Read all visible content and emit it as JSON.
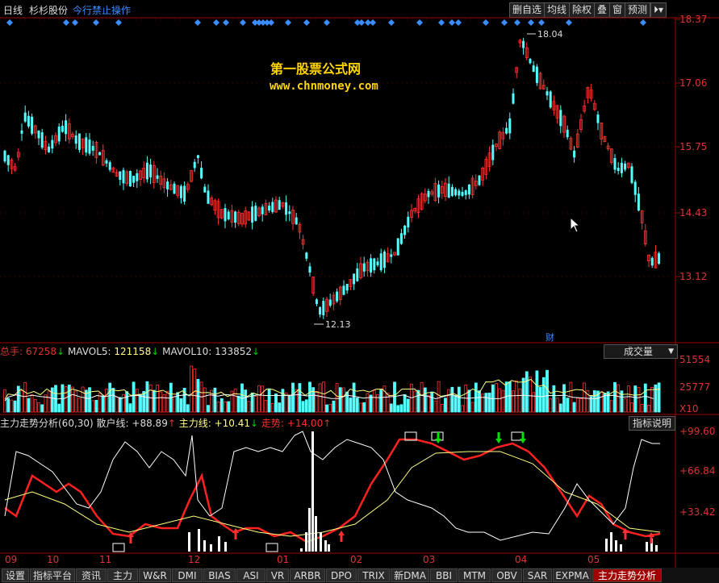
{
  "topbar": {
    "period": "日线",
    "stock_name": "杉杉股份",
    "warning": "今行禁止操作",
    "buttons": [
      "删自选",
      "均线",
      "除权",
      "叠",
      "窗",
      "预测"
    ],
    "arrow_icon": "⏵▾"
  },
  "watermark": {
    "line1": "第一股票公式网",
    "line2": "www.chnmoney.com"
  },
  "price_axis": [
    "18.37",
    "17.06",
    "15.75",
    "14.43",
    "13.12"
  ],
  "price_annotations": {
    "high_label": "18.04",
    "low_label": "12.13",
    "finance_marker": "财"
  },
  "volume_header": {
    "total_label": "总手:",
    "total_value": "67258",
    "total_arrow": "↓",
    "mavol5_label": "MAVOL5:",
    "mavol5_value": "121158",
    "mavol5_arrow": "↓",
    "mavol10_label": "MAVOL10:",
    "mavol10_value": "133852",
    "mavol10_arrow": "↓",
    "selector": "成交量",
    "axis": [
      "51554",
      "25777"
    ],
    "multiplier": "X10"
  },
  "indicator_header": {
    "name": "主力走势分析(60,30)",
    "retail_label": "散户线:",
    "retail_value": "+88.89",
    "retail_arrow": "↑",
    "main_label": "主力线:",
    "main_value": "+10.41",
    "main_arrow": "↓",
    "trend_label": "走势:",
    "trend_value": "+14.00",
    "trend_arrow": "↑",
    "help_button": "指标说明",
    "axis": [
      "+99.60",
      "+66.84",
      "+33.42"
    ]
  },
  "date_axis": [
    "09",
    "10",
    "11",
    "12",
    "01",
    "02",
    "03",
    "04",
    "05"
  ],
  "tabs": [
    "设置",
    "指标平台",
    "资讯",
    "主力",
    "W&R",
    "DMI",
    "BIAS",
    "ASI",
    "VR",
    "ARBR",
    "DPO",
    "TRIX",
    "新DMA",
    "BBI",
    "MTM",
    "OBV",
    "SAR",
    "EXPMA",
    "主力走势分析"
  ],
  "active_tab": "主力走势分析",
  "colors": {
    "up": "#ff3232",
    "down": "#54ffff",
    "axis_text": "#ff3232",
    "accent_blue": "#3a8cff",
    "main_line": "#ff2020",
    "retail_line": "#ffffff",
    "trend_line": "#ffff80",
    "buy_arrow": "#ff3030",
    "sell_arrow": "#00e000"
  }
}
